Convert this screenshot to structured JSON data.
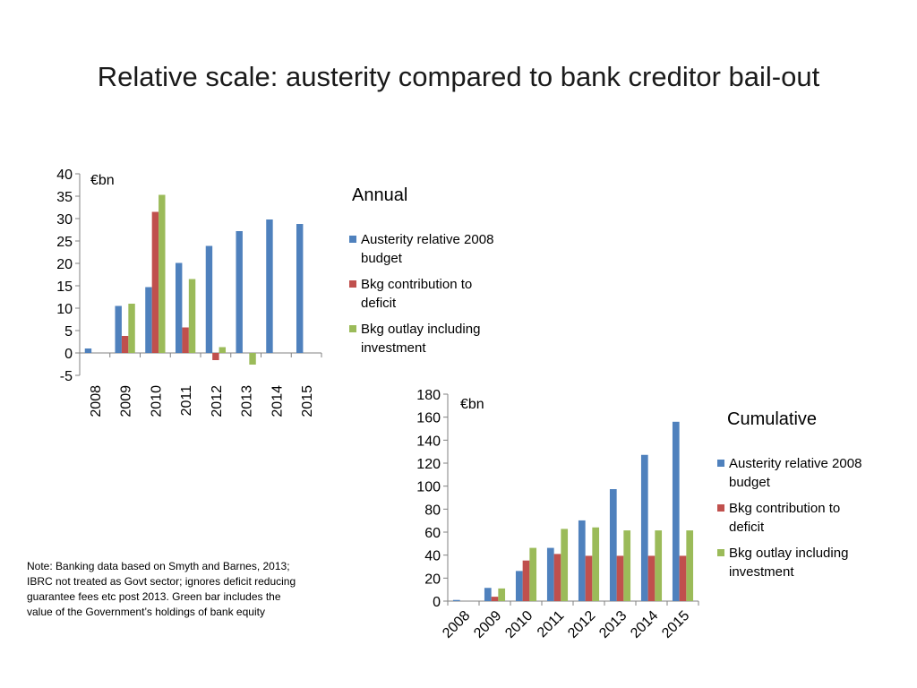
{
  "slide": {
    "title": "Relative scale: austerity compared to bank creditor bail-out",
    "note": "Note: Banking data based on Smyth and Barnes, 2013; IBRC not treated as Govt sector; ignores deficit reducing guarantee fees etc post 2013. Green bar includes the value of the Government’s holdings of bank equity"
  },
  "chart_data": [
    {
      "type": "bar",
      "title": "Annual",
      "unit_label": "€bn",
      "categories": [
        "2008",
        "2009",
        "2010",
        "2011",
        "2012",
        "2013",
        "2014",
        "2015"
      ],
      "series": [
        {
          "name": "Austerity relative 2008 budget",
          "color": "#4f81bd",
          "values": [
            1,
            10.5,
            14.7,
            20.1,
            23.9,
            27.2,
            29.8,
            28.8
          ]
        },
        {
          "name": "Bkg contribution to deficit",
          "color": "#c0504d",
          "values": [
            0,
            3.8,
            31.5,
            5.7,
            -1.6,
            0,
            0,
            0
          ]
        },
        {
          "name": "Bkg outlay including investment",
          "color": "#9bbb59",
          "values": [
            0,
            11,
            35.3,
            16.5,
            1.3,
            -2.6,
            0,
            0
          ]
        }
      ],
      "ylim": [
        -5,
        40
      ],
      "yticks": [
        -5,
        0,
        5,
        10,
        15,
        20,
        25,
        30,
        35,
        40
      ],
      "legend_position": "right"
    },
    {
      "type": "bar",
      "title": "Cumulative",
      "unit_label": "€bn",
      "categories": [
        "2008",
        "2009",
        "2010",
        "2011",
        "2012",
        "2013",
        "2014",
        "2015"
      ],
      "series": [
        {
          "name": "Austerity relative 2008 budget",
          "color": "#4f81bd",
          "values": [
            1,
            11.5,
            26.2,
            46.3,
            70.2,
            97.4,
            127.2,
            156
          ]
        },
        {
          "name": "Bkg contribution to deficit",
          "color": "#c0504d",
          "values": [
            0,
            3.8,
            35.3,
            41,
            39.4,
            39.4,
            39.4,
            39.4
          ]
        },
        {
          "name": "Bkg outlay including investment",
          "color": "#9bbb59",
          "values": [
            0,
            11,
            46.3,
            62.8,
            64.1,
            61.5,
            61.5,
            61.5
          ]
        }
      ],
      "ylim": [
        0,
        180
      ],
      "yticks": [
        0,
        20,
        40,
        60,
        80,
        100,
        120,
        140,
        160,
        180
      ],
      "legend_position": "right"
    }
  ]
}
